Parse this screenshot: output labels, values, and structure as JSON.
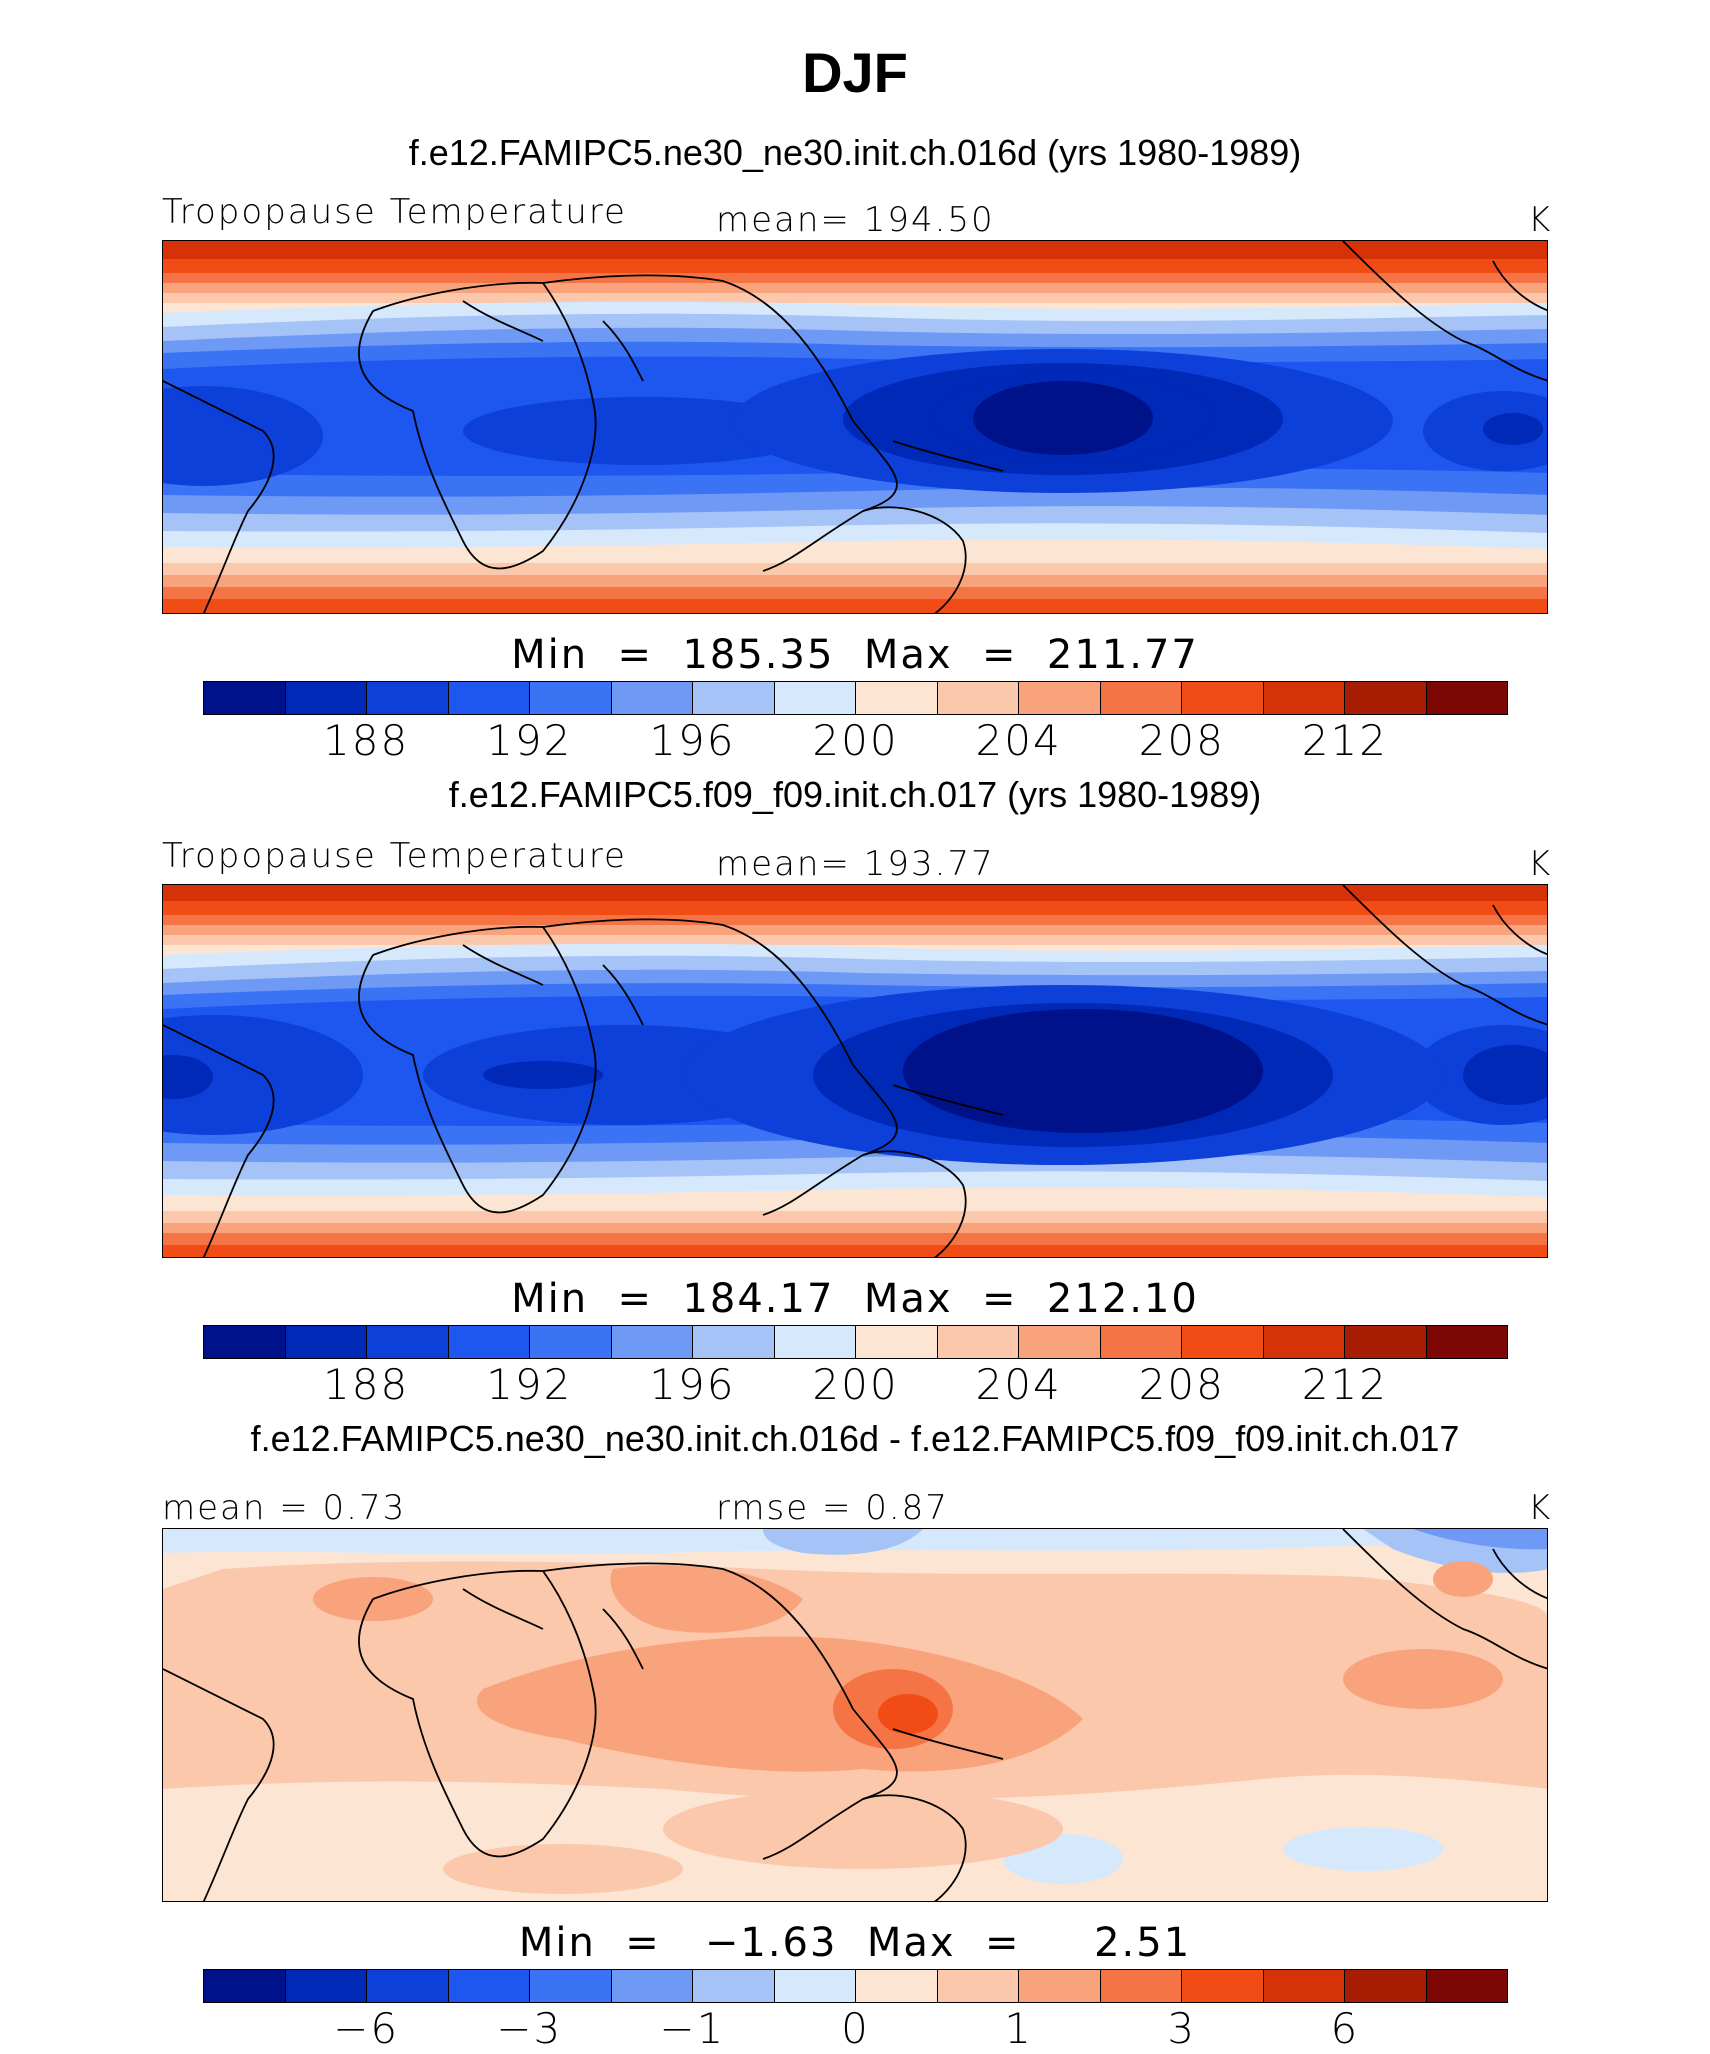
{
  "title": "DJF",
  "palette": [
    "#00128a",
    "#0029b8",
    "#0d3fd9",
    "#1e56f0",
    "#3b73f5",
    "#6e9af5",
    "#a5c3f7",
    "#d6e8fc",
    "#fde5d4",
    "#fcc8ac",
    "#f9a37d",
    "#f57445",
    "#f14b16",
    "#d63208",
    "#a61d02",
    "#7d0704"
  ],
  "panels": [
    {
      "case": "f.e12.FAMIPC5.ne30_ne30.init.ch.016d (yrs 1980-1989)",
      "left_label": "Tropopause Temperature",
      "center_label": "mean=  194.50",
      "units": "K",
      "minmax": "Min  =  185.35  Max  =  211.77",
      "ticks": [
        "188",
        "192",
        "196",
        "200",
        "204",
        "208",
        "212"
      ]
    },
    {
      "case": "f.e12.FAMIPC5.f09_f09.init.ch.017 (yrs 1980-1989)",
      "left_label": "Tropopause Temperature",
      "center_label": "mean=  193.77",
      "units": "K",
      "minmax": "Min  =  184.17  Max  =  212.10",
      "ticks": [
        "188",
        "192",
        "196",
        "200",
        "204",
        "208",
        "212"
      ]
    },
    {
      "case": "f.e12.FAMIPC5.ne30_ne30.init.ch.016d - f.e12.FAMIPC5.f09_f09.init.ch.017",
      "left_label": "mean =    0.73",
      "center_label": "rmse =    0.87",
      "units": "K",
      "minmax": "Min  =   −1.63  Max  =     2.51",
      "ticks": [
        "−6",
        "−3",
        "−1",
        "0",
        "1",
        "3",
        "6"
      ]
    }
  ]
}
